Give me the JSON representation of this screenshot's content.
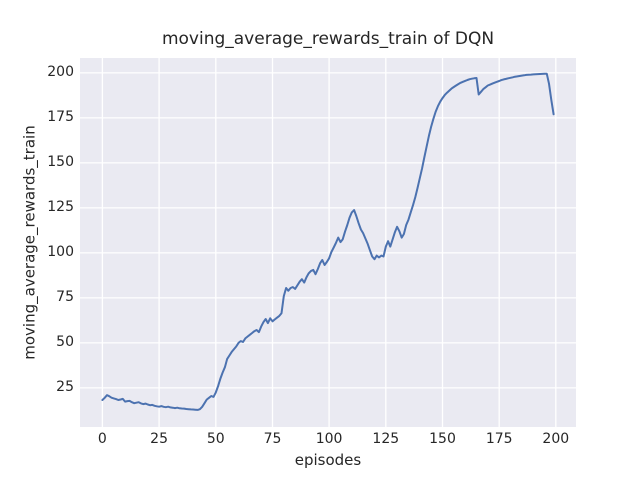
{
  "chart_data": {
    "type": "line",
    "title": "moving_average_rewards_train of DQN",
    "xlabel": "episodes",
    "ylabel": "moving_average_rewards_train",
    "x_ticks": [
      0,
      25,
      50,
      75,
      100,
      125,
      150,
      175,
      200
    ],
    "y_ticks": [
      25,
      50,
      75,
      100,
      125,
      150,
      175,
      200
    ],
    "xlim": [
      -9.9,
      208.9
    ],
    "ylim": [
      3.3,
      208.3
    ],
    "grid": true,
    "legend": "none",
    "style": {
      "figure_bg": "#ffffff",
      "axes_bg": "#eaeaf2",
      "grid_color": "#ffffff",
      "line_color": "#4c72b0",
      "text_color": "#262626"
    },
    "series": [
      {
        "name": "moving_average_rewards_train",
        "x0": 0,
        "dx": 1,
        "values": [
          18.3,
          19.5,
          21.0,
          20.4,
          19.6,
          19.2,
          18.8,
          18.3,
          18.6,
          18.9,
          17.4,
          17.7,
          17.8,
          17.1,
          16.5,
          16.8,
          17.1,
          16.4,
          16.0,
          16.3,
          15.8,
          15.4,
          15.6,
          15.1,
          14.8,
          14.6,
          14.9,
          14.5,
          14.3,
          14.6,
          14.2,
          14.0,
          13.8,
          14.0,
          13.7,
          13.6,
          13.5,
          13.3,
          13.2,
          13.1,
          13.0,
          12.9,
          12.8,
          13.2,
          14.5,
          16.5,
          18.5,
          19.5,
          20.5,
          20.0,
          22.5,
          26.0,
          30.0,
          33.5,
          36.5,
          41.0,
          43.0,
          45.0,
          46.5,
          48.0,
          50.0,
          51.0,
          50.5,
          52.5,
          53.5,
          54.5,
          55.5,
          56.5,
          57.2,
          56.0,
          59.0,
          61.5,
          63.3,
          61.0,
          63.7,
          62.0,
          63.0,
          64.0,
          65.0,
          66.5,
          76.0,
          80.5,
          79.0,
          80.5,
          81.0,
          80.0,
          82.0,
          84.0,
          85.4,
          83.5,
          86.5,
          88.7,
          90.0,
          90.6,
          88.2,
          91.0,
          94.3,
          96.1,
          93.3,
          95.0,
          97.0,
          100.5,
          103.0,
          105.5,
          108.5,
          106.0,
          107.5,
          111.8,
          115.5,
          119.5,
          122.5,
          123.8,
          120.5,
          116.5,
          113.0,
          111.0,
          108.0,
          105.0,
          101.5,
          98.0,
          96.5,
          98.5,
          97.5,
          98.5,
          98.0,
          103.5,
          106.5,
          103.5,
          107.5,
          111.5,
          114.5,
          112.0,
          108.5,
          110.5,
          115.5,
          118.5,
          122.5,
          126.5,
          131.0,
          136.0,
          141.5,
          147.0,
          153.0,
          159.0,
          165.0,
          170.0,
          174.5,
          178.5,
          181.5,
          184.0,
          186.0,
          187.7,
          189.0,
          190.2,
          191.3,
          192.2,
          193.0,
          193.8,
          194.5,
          195.1,
          195.6,
          196.1,
          196.5,
          196.8,
          197.0,
          197.2,
          188.0,
          189.5,
          191.0,
          192.0,
          193.0,
          193.5,
          194.1,
          194.6,
          195.1,
          195.5,
          196.0,
          196.4,
          196.7,
          197.0,
          197.3,
          197.6,
          197.9,
          198.1,
          198.3,
          198.5,
          198.7,
          198.9,
          199.0,
          199.1,
          199.2,
          199.3,
          199.35,
          199.4,
          199.45,
          199.5,
          199.5,
          194.0,
          185.0,
          177.0
        ]
      }
    ]
  }
}
